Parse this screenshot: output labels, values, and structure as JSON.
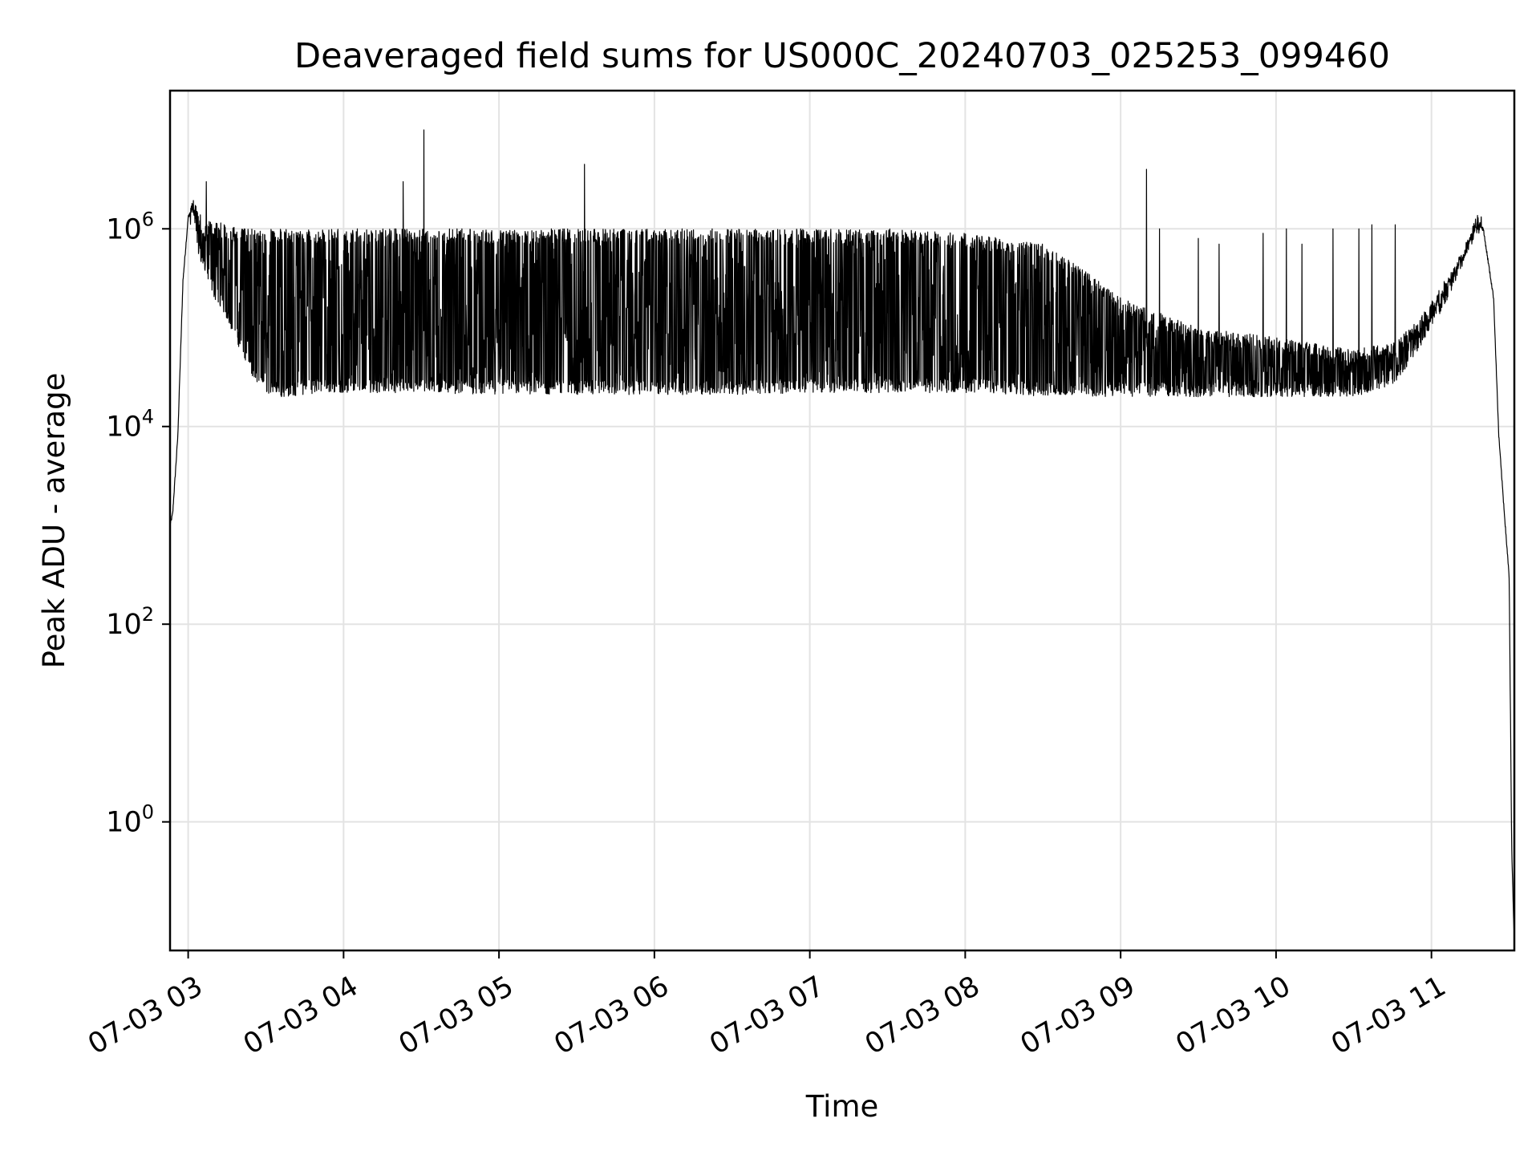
{
  "chart_data": {
    "type": "line",
    "title": "Deaveraged field sums for US000C_20240703_025253_099460",
    "xlabel": "Time",
    "ylabel": "Peak ADU - average",
    "yscale": "log",
    "grid": true,
    "line_color": "#000000",
    "xlim": [
      "07-03 02:53",
      "07-03 11:32"
    ],
    "ylim": [
      0.05,
      25000000
    ],
    "x_ticks": [
      "07-03 03",
      "07-03 04",
      "07-03 05",
      "07-03 06",
      "07-03 07",
      "07-03 08",
      "07-03 09",
      "07-03 10",
      "07-03 11"
    ],
    "y_ticks": [
      {
        "base": "10",
        "exp": "0",
        "value": 1
      },
      {
        "base": "10",
        "exp": "2",
        "value": 100
      },
      {
        "base": "10",
        "exp": "4",
        "value": 10000
      },
      {
        "base": "10",
        "exp": "6",
        "value": 1000000
      }
    ],
    "series": [
      {
        "x": [
          "07-03 02:53",
          "07-03 02:54",
          "07-03 02:56",
          "07-03 02:58",
          "07-03 03:00",
          "07-03 03:02",
          "07-03 03:04",
          "07-03 03:06",
          "07-03 03:10",
          "07-03 03:15",
          "07-03 03:20",
          "07-03 03:25",
          "07-03 03:30",
          "07-03 03:35",
          "07-03 03:40",
          "07-03 03:50",
          "07-03 04:00",
          "07-03 04:30",
          "07-03 05:00",
          "07-03 05:30",
          "07-03 06:00",
          "07-03 06:30",
          "07-03 07:00",
          "07-03 07:30",
          "07-03 08:00",
          "07-03 08:30",
          "07-03 08:45",
          "07-03 09:00",
          "07-03 09:30",
          "07-03 10:00",
          "07-03 10:30",
          "07-03 10:45",
          "07-03 10:55",
          "07-03 11:05",
          "07-03 11:12",
          "07-03 11:17",
          "07-03 11:20",
          "07-03 11:24",
          "07-03 11:26",
          "07-03 11:28",
          "07-03 11:30",
          "07-03 11:31",
          "07-03 11:32"
        ],
        "y": [
          1000,
          1300,
          8000,
          300000,
          1300000,
          1800000,
          1400000,
          1000000,
          900000,
          700000,
          500000,
          350000,
          250000,
          200000,
          150000,
          120000,
          130000,
          150000,
          150000,
          150000,
          150000,
          150000,
          150000,
          140000,
          130000,
          100000,
          70000,
          45000,
          35000,
          30000,
          32000,
          45000,
          90000,
          220000,
          500000,
          1100000,
          1000000,
          200000,
          8000,
          1500,
          300,
          0.5,
          0.06
        ],
        "lower": [
          1000,
          1300,
          8000,
          300000,
          1300000,
          1400000,
          500000,
          400000,
          200000,
          120000,
          60000,
          30000,
          22000,
          20000,
          20000,
          22000,
          22000,
          22000,
          21000,
          21000,
          21000,
          21000,
          22000,
          22000,
          22000,
          20000,
          20000,
          20000,
          20000,
          20000,
          20000,
          25000,
          60000,
          160000,
          400000,
          1000000,
          1000000,
          200000,
          8000,
          1500,
          300,
          0.5,
          0.06
        ],
        "upper": [
          1000,
          1300,
          8000,
          300000,
          1300000,
          1900000,
          1500000,
          1200000,
          1200000,
          1100000,
          1000000,
          1000000,
          1000000,
          1000000,
          1000000,
          1000000,
          1000000,
          1000000,
          1000000,
          1000000,
          1000000,
          1000000,
          1000000,
          1000000,
          900000,
          700000,
          400000,
          200000,
          100000,
          80000,
          60000,
          70000,
          120000,
          300000,
          600000,
          1200000,
          1100000,
          200000,
          8000,
          1500,
          300,
          0.5,
          0.06
        ]
      }
    ],
    "spikes": [
      {
        "x": "07-03 03:07",
        "y": 3000000
      },
      {
        "x": "07-03 04:23",
        "y": 3000000
      },
      {
        "x": "07-03 04:31",
        "y": 10000000
      },
      {
        "x": "07-03 05:33",
        "y": 4500000
      },
      {
        "x": "07-03 09:10",
        "y": 4000000
      },
      {
        "x": "07-03 09:15",
        "y": 1000000
      },
      {
        "x": "07-03 09:30",
        "y": 800000
      },
      {
        "x": "07-03 09:38",
        "y": 700000
      },
      {
        "x": "07-03 09:55",
        "y": 900000
      },
      {
        "x": "07-03 10:04",
        "y": 1000000
      },
      {
        "x": "07-03 10:10",
        "y": 700000
      },
      {
        "x": "07-03 10:22",
        "y": 1000000
      },
      {
        "x": "07-03 10:32",
        "y": 1000000
      },
      {
        "x": "07-03 10:37",
        "y": 1100000
      },
      {
        "x": "07-03 10:46",
        "y": 1100000
      }
    ]
  }
}
